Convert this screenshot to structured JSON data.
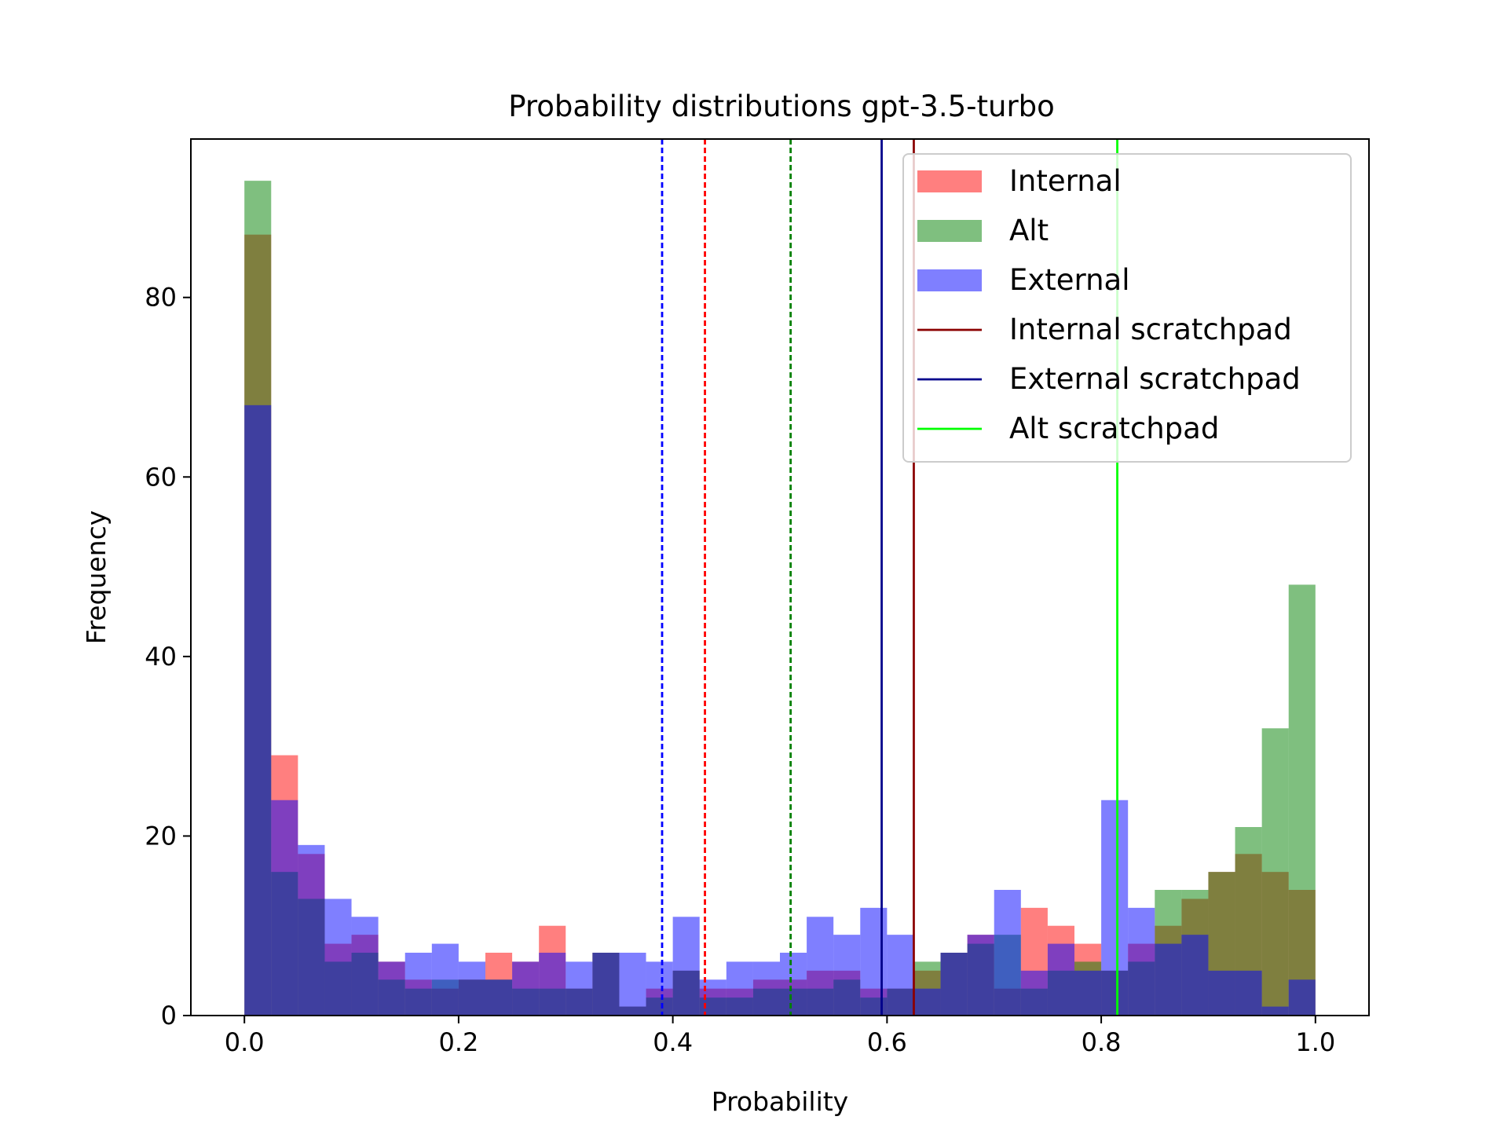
{
  "chart_data": {
    "type": "bar",
    "title": "Probability distributions gpt-3.5-turbo",
    "xlabel": "Probability",
    "ylabel": "Frequency",
    "xlim": [
      -0.05,
      1.05
    ],
    "ylim": [
      0,
      97.65
    ],
    "xticks": [
      0.0,
      0.2,
      0.4,
      0.6,
      0.8,
      1.0
    ],
    "xtick_labels": [
      "0.0",
      "0.2",
      "0.4",
      "0.6",
      "0.8",
      "1.0"
    ],
    "yticks": [
      0,
      20,
      40,
      60,
      80
    ],
    "ytick_labels": [
      "0",
      "20",
      "40",
      "60",
      "80"
    ],
    "grid": false,
    "legend_position": "top-right",
    "bin_edges": [
      0.0,
      0.025,
      0.05,
      0.075,
      0.1,
      0.125,
      0.15,
      0.175,
      0.2,
      0.225,
      0.25,
      0.275,
      0.3,
      0.325,
      0.35,
      0.375,
      0.4,
      0.425,
      0.45,
      0.475,
      0.5,
      0.525,
      0.55,
      0.575,
      0.6,
      0.625,
      0.65,
      0.675,
      0.7,
      0.725,
      0.75,
      0.775,
      0.8,
      0.825,
      0.85,
      0.875,
      0.9,
      0.925,
      0.95,
      0.975,
      1.0
    ],
    "series": [
      {
        "name": "Internal",
        "color": "#ff0000",
        "opacity": 0.5,
        "values": [
          87,
          29,
          18,
          8,
          9,
          6,
          4,
          3,
          4,
          7,
          6,
          10,
          3,
          7,
          1,
          3,
          5,
          3,
          3,
          4,
          4,
          5,
          5,
          3,
          3,
          5,
          7,
          9,
          3,
          12,
          10,
          8,
          5,
          8,
          10,
          13,
          16,
          18,
          16,
          14
        ]
      },
      {
        "name": "Alt",
        "color": "#008000",
        "opacity": 0.5,
        "values": [
          93,
          16,
          13,
          6,
          7,
          4,
          3,
          4,
          4,
          4,
          3,
          3,
          3,
          7,
          1,
          2,
          5,
          2,
          2,
          3,
          3,
          3,
          4,
          2,
          3,
          6,
          7,
          8,
          9,
          3,
          5,
          6,
          5,
          6,
          14,
          14,
          16,
          21,
          32,
          48
        ]
      },
      {
        "name": "External",
        "color": "#0000ff",
        "opacity": 0.5,
        "values": [
          68,
          24,
          19,
          13,
          11,
          6,
          7,
          8,
          6,
          4,
          6,
          7,
          6,
          7,
          7,
          6,
          11,
          4,
          6,
          6,
          7,
          11,
          9,
          12,
          9,
          3,
          7,
          9,
          14,
          5,
          8,
          5,
          24,
          12,
          8,
          9,
          5,
          5,
          1,
          4
        ]
      }
    ],
    "vlines": [
      {
        "label": "",
        "x": 0.39,
        "color": "#0000ff",
        "style": "dashed"
      },
      {
        "label": "",
        "x": 0.43,
        "color": "#ff0000",
        "style": "dashed"
      },
      {
        "label": "",
        "x": 0.51,
        "color": "#008000",
        "style": "dashed"
      },
      {
        "label": "External scratchpad",
        "x": 0.595,
        "color": "#00008b",
        "style": "solid"
      },
      {
        "label": "Internal scratchpad",
        "x": 0.625,
        "color": "#8b0000",
        "style": "solid"
      },
      {
        "label": "Alt scratchpad",
        "x": 0.815,
        "color": "#00ff00",
        "style": "solid"
      }
    ],
    "legend": [
      {
        "label": "Internal",
        "kind": "patch",
        "color": "#ff0000",
        "opacity": 0.5
      },
      {
        "label": "Alt",
        "kind": "patch",
        "color": "#008000",
        "opacity": 0.5
      },
      {
        "label": "External",
        "kind": "patch",
        "color": "#0000ff",
        "opacity": 0.5
      },
      {
        "label": "Internal scratchpad",
        "kind": "line",
        "color": "#8b0000"
      },
      {
        "label": "External scratchpad",
        "kind": "line",
        "color": "#00008b"
      },
      {
        "label": "Alt scratchpad",
        "kind": "line",
        "color": "#00ff00"
      }
    ]
  }
}
